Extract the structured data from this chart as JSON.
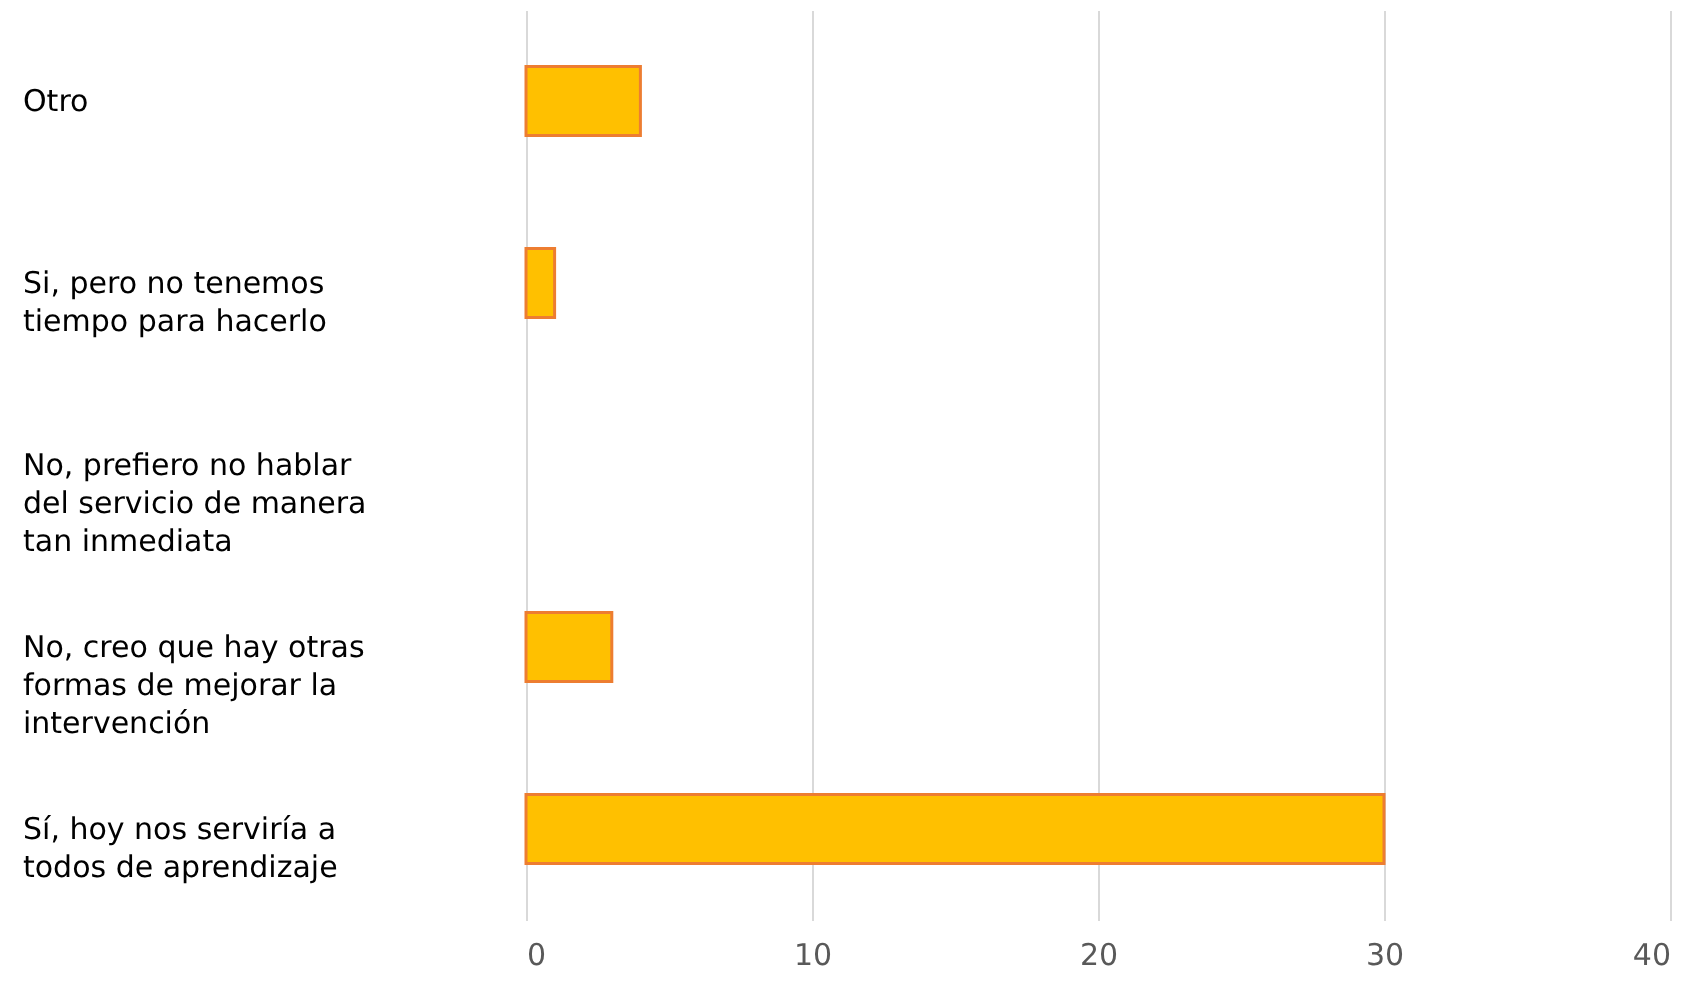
{
  "chart_data": {
    "type": "bar",
    "orientation": "horizontal",
    "categories": [
      "Otro",
      "Si, pero no tenemos tiempo para hacerlo",
      "No, prefiero no hablar del servicio de manera tan inmediata",
      "No, creo que hay otras formas de mejorar la intervención",
      "Sí, hoy nos serviría a todos de aprendizaje"
    ],
    "values": [
      4,
      1,
      0,
      3,
      30
    ],
    "color": "#ffc000",
    "xlim": [
      0,
      40
    ],
    "xticks": [
      0,
      10,
      20,
      30,
      40
    ],
    "grid": "x"
  }
}
